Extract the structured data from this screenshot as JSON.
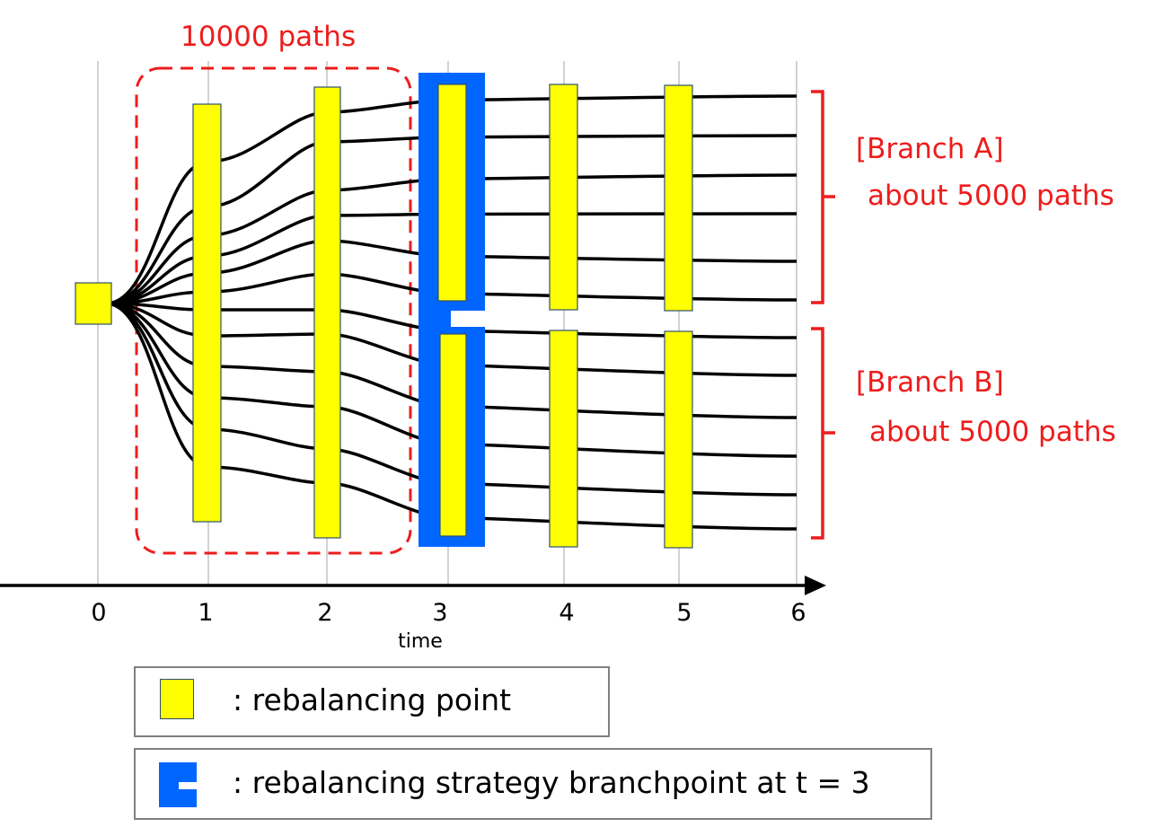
{
  "annotations": {
    "paths_total": "10000 paths",
    "branch_a_title": "[Branch A]",
    "branch_a_count": "about 5000 paths",
    "branch_b_title": "[Branch B]",
    "branch_b_count": "about 5000 paths"
  },
  "axis": {
    "title": "time",
    "ticks": [
      "0",
      "1",
      "2",
      "3",
      "4",
      "5",
      "6"
    ]
  },
  "legend": {
    "rebalancing_point": ": rebalancing point",
    "branchpoint": ": rebalancing strategy branchpoint at  t = 3"
  },
  "colors": {
    "rebalance_fill": "#ffff00",
    "branchpoint_fill": "#0066ff",
    "annotation": "#ee1c1c",
    "path": "#000000"
  },
  "icons": {
    "rebalancing_point": "yellow-square",
    "branchpoint": "blue-notched-square"
  },
  "paths": {
    "total": 10000,
    "branch_a": 5000,
    "branch_b": 5000,
    "branch_time": 3
  }
}
